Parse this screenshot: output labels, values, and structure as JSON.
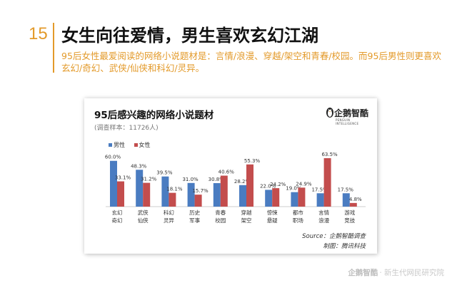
{
  "slide": {
    "number": "15",
    "title": "女生向往爱情，男生喜欢玄幻江湖",
    "subtitle": "95后女性最爱阅读的网络小说题材是：言情/浪漫、穿越/架空和青春/校园。而95后男性则更喜欢玄幻/奇幻、武侠/仙侠和科幻/灵异。"
  },
  "card": {
    "logo_text": "企鹅智酷",
    "logo_sub": "PENGUIN INTELLIGENCE",
    "source": "Source：企鹅智酷调查",
    "maker": "制图：腾讯科技"
  },
  "footer": {
    "brand": "企鹅智酷",
    "tagline": "· 新生代网民研究院"
  },
  "colors": {
    "male": "#4a7cc1",
    "female": "#c34d4d",
    "accent": "#e39a2a"
  },
  "chart_data": {
    "type": "bar",
    "title": "95后感兴趣的网络小说题材",
    "note": "(调查样本：11726人)",
    "categories": [
      [
        "玄幻",
        "奇幻"
      ],
      [
        "武侠",
        "仙侠"
      ],
      [
        "科幻",
        "灵异"
      ],
      [
        "历史",
        "军事"
      ],
      [
        "青春",
        "校园"
      ],
      [
        "穿越",
        "架空"
      ],
      [
        "惊悚",
        "悬疑"
      ],
      [
        "都市",
        "职场"
      ],
      [
        "言情",
        "浪漫"
      ],
      [
        "游戏",
        "竞技"
      ]
    ],
    "series": [
      {
        "name": "男性",
        "values": [
          60.0,
          48.3,
          39.5,
          31.0,
          30.8,
          28.2,
          22.0,
          19.0,
          17.5,
          17.5
        ]
      },
      {
        "name": "女性",
        "values": [
          33.1,
          31.2,
          18.1,
          15.7,
          40.6,
          55.3,
          24.2,
          24.9,
          63.5,
          4.8
        ]
      }
    ],
    "ylim": [
      0,
      70
    ],
    "legend_position": "top-left",
    "grid": false
  }
}
